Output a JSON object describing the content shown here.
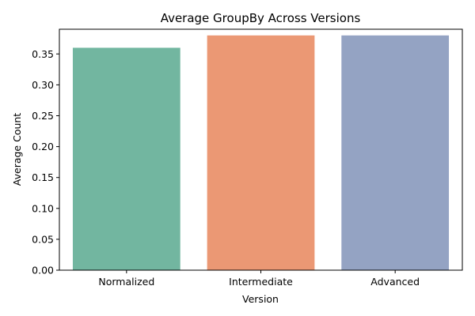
{
  "chart_data": {
    "type": "bar",
    "title": "Average GroupBy Across Versions",
    "xlabel": "Version",
    "ylabel": "Average Count",
    "categories": [
      "Normalized",
      "Intermediate",
      "Advanced"
    ],
    "values": [
      0.36,
      0.38,
      0.38
    ],
    "colors": [
      "#72b6a0",
      "#eb9874",
      "#94a3c3"
    ],
    "ylim": [
      0,
      0.39
    ],
    "yticks": [
      "0.00",
      "0.05",
      "0.10",
      "0.15",
      "0.20",
      "0.25",
      "0.30",
      "0.35"
    ],
    "grid": false,
    "legend": "none"
  }
}
